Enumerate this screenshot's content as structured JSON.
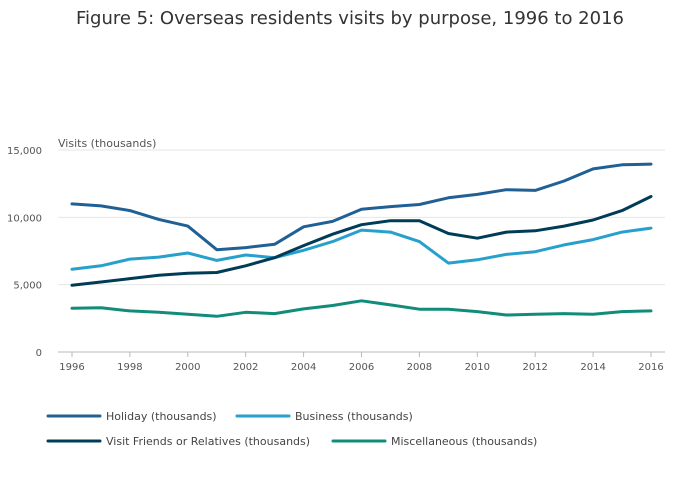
{
  "chart_data": {
    "type": "line",
    "title": "Figure 5: Overseas residents visits by purpose, 1996 to 2016",
    "xlabel": "",
    "ylabel": "Visits (thousands)",
    "ylim": [
      0,
      15000
    ],
    "yticks": [
      0,
      5000,
      10000,
      15000
    ],
    "ytick_labels": [
      "0",
      "5,000",
      "10,000",
      "15,000"
    ],
    "xticks": [
      1996,
      1998,
      2000,
      2002,
      2004,
      2006,
      2008,
      2010,
      2012,
      2014,
      2016
    ],
    "xtick_labels": [
      "1996",
      "1998",
      "2000",
      "2002",
      "2004",
      "2006",
      "2008",
      "2010",
      "2012",
      "2014",
      "2016"
    ],
    "x": [
      1996,
      1997,
      1998,
      1999,
      2000,
      2001,
      2002,
      2003,
      2004,
      2005,
      2006,
      2007,
      2008,
      2009,
      2010,
      2011,
      2012,
      2013,
      2014,
      2015,
      2016
    ],
    "grid": true,
    "legend_position": "bottom",
    "series": [
      {
        "name": "Holiday (thousands)",
        "color": "#206095",
        "values": [
          11000,
          10850,
          10500,
          9850,
          9350,
          7600,
          7750,
          8000,
          9300,
          9700,
          10600,
          10800,
          10950,
          11450,
          11700,
          12050,
          12000,
          12700,
          13600,
          13900,
          13950
        ]
      },
      {
        "name": "Business (thousands)",
        "color": "#27a0cc",
        "values": [
          6150,
          6400,
          6900,
          7050,
          7350,
          6800,
          7200,
          7000,
          7550,
          8200,
          9050,
          8900,
          8200,
          6600,
          6850,
          7250,
          7450,
          7950,
          8350,
          8900,
          9200
        ]
      },
      {
        "name": "Visit Friends or Relatives (thousands)",
        "color": "#003c57",
        "values": [
          4950,
          5200,
          5450,
          5700,
          5850,
          5900,
          6400,
          7000,
          7900,
          8750,
          9450,
          9750,
          9750,
          8800,
          8450,
          8900,
          9000,
          9350,
          9800,
          10500,
          11550
        ]
      },
      {
        "name": "Miscellaneous (thousands)",
        "color": "#118c7b",
        "values": [
          3250,
          3280,
          3050,
          2950,
          2800,
          2650,
          2950,
          2850,
          3200,
          3450,
          3800,
          3500,
          3180,
          3180,
          3000,
          2750,
          2800,
          2850,
          2800,
          3000,
          3050
        ]
      }
    ]
  }
}
